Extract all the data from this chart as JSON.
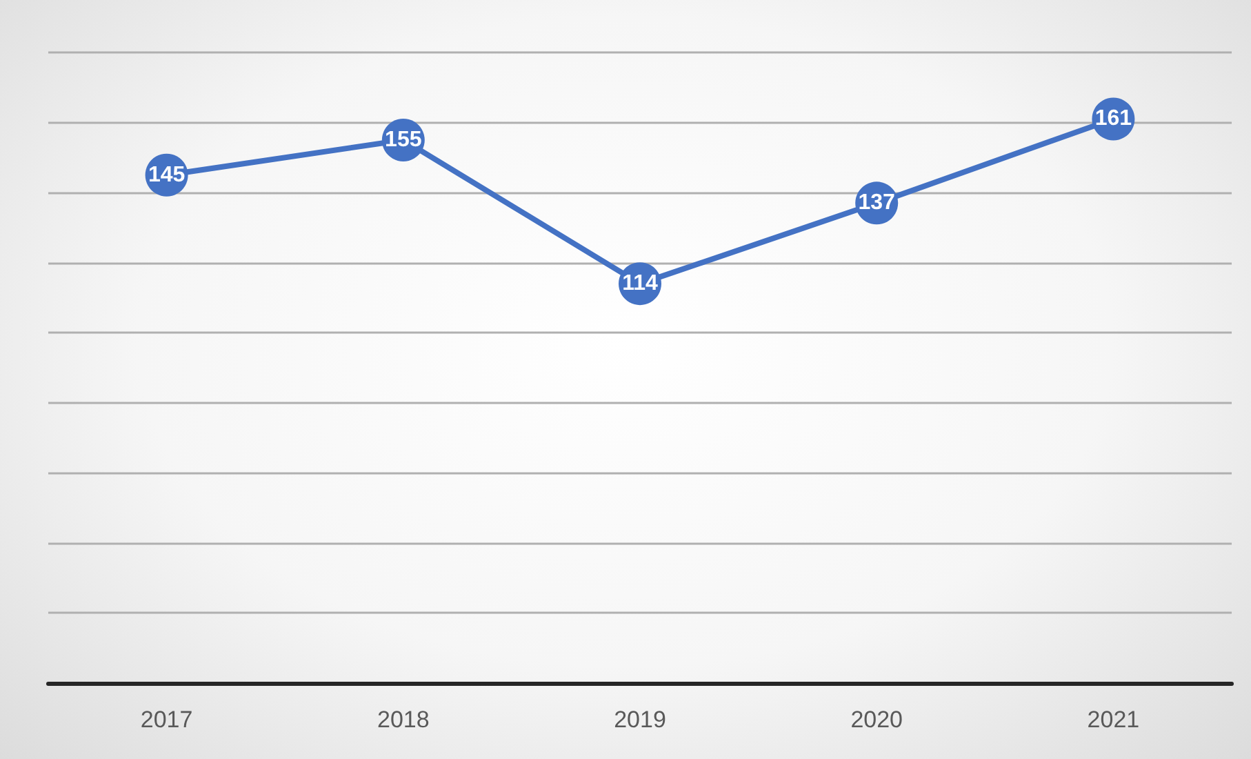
{
  "chart_data": {
    "type": "line",
    "categories": [
      "2017",
      "2018",
      "2019",
      "2020",
      "2021"
    ],
    "series": [
      {
        "color": "#4472c4",
        "values": [
          145,
          155,
          114,
          137,
          161
        ]
      }
    ],
    "ylim": [
      0,
      180
    ],
    "yticks": [
      {
        "value": 0,
        "label": null
      },
      {
        "value": 20,
        "label": null
      },
      {
        "value": 40,
        "label": null
      },
      {
        "value": 60,
        "label": null
      },
      {
        "value": 80,
        "label": null
      },
      {
        "value": 100,
        "label": null
      },
      {
        "value": 120,
        "label": null
      },
      {
        "value": 140,
        "label": null
      },
      {
        "value": 160,
        "label": null
      },
      {
        "value": 180,
        "label": null
      }
    ],
    "grid": "y",
    "marker": "circle",
    "line_style": "solid",
    "data_labels": true,
    "tick_labels": "x"
  }
}
